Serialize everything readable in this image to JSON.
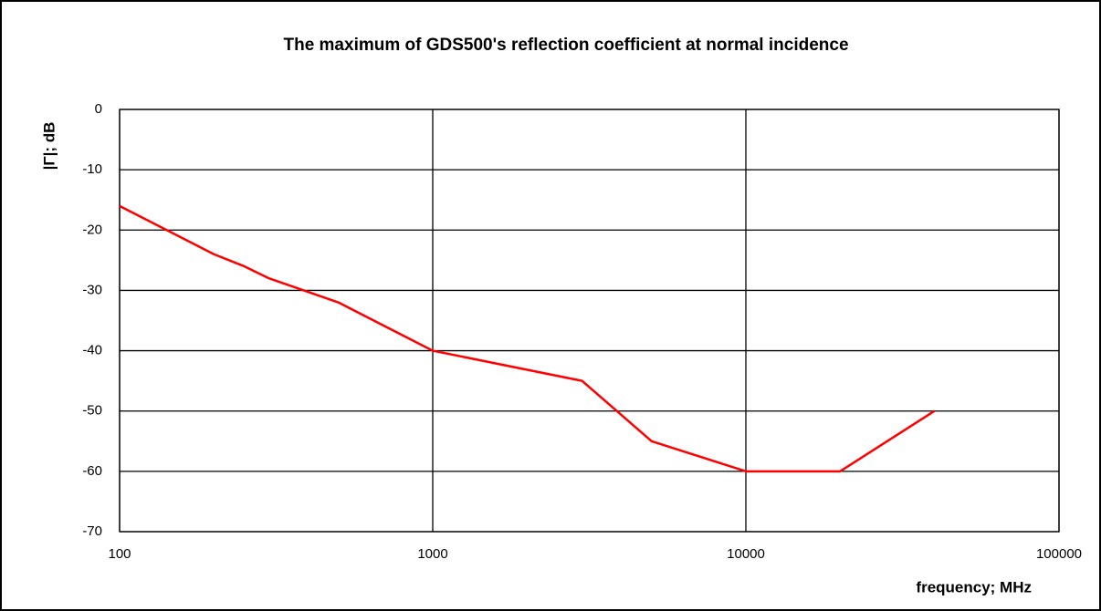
{
  "chart_data": {
    "type": "line",
    "title": "The maximum of GDS500's reflection coefficient at normal incidence",
    "x_label": "frequency; MHz",
    "y_label": "|Γ|; dB",
    "x": [
      100,
      200,
      250,
      300,
      500,
      1000,
      3000,
      5000,
      10000,
      20000,
      40000
    ],
    "series": [
      {
        "name": null,
        "color": "#ff0000",
        "values": [
          -16,
          -24,
          -26,
          -28,
          -32,
          -40,
          -45,
          -55,
          -60,
          -60,
          -50
        ]
      }
    ],
    "xlim": [
      100,
      100000
    ],
    "xticks": [
      100,
      1000,
      10000,
      100000
    ],
    "xscale": "log",
    "ylim": [
      -70,
      0
    ],
    "yticks": [
      -70,
      -60,
      -50,
      -40,
      -30,
      -20,
      -10,
      0
    ],
    "grid": true
  }
}
